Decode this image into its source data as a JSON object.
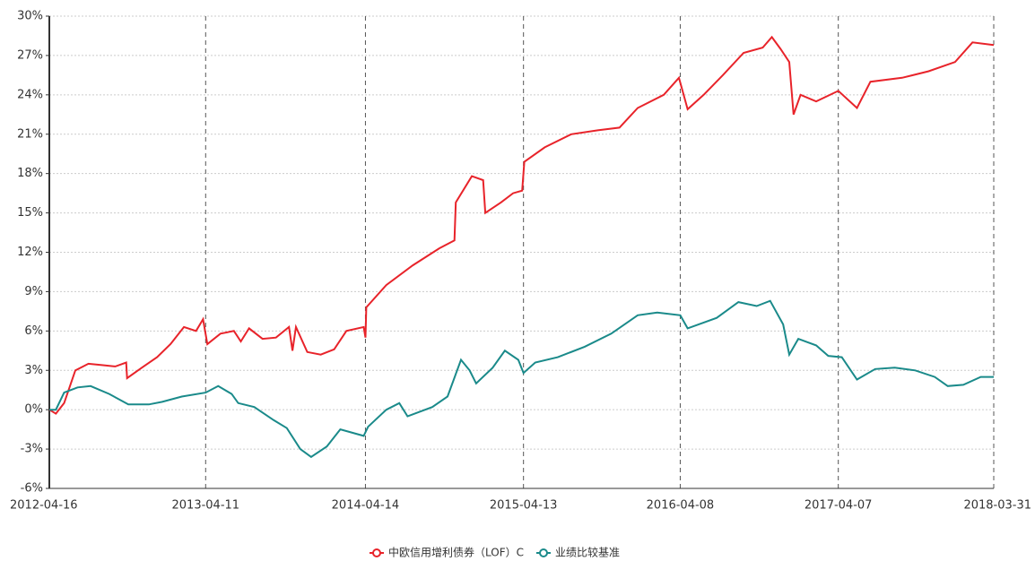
{
  "chart_data": {
    "type": "line",
    "xlim": [
      "2012-04-16",
      "2018-03-31"
    ],
    "xticks": [
      "2012-04-16",
      "2013-04-11",
      "2014-04-14",
      "2015-04-13",
      "2016-04-08",
      "2017-04-07",
      "2018-03-31"
    ],
    "ylim": [
      -6,
      30
    ],
    "yticks": [
      {
        "value": -6,
        "label": "-6%"
      },
      {
        "value": -3,
        "label": "-3%"
      },
      {
        "value": 0,
        "label": "0%"
      },
      {
        "value": 3,
        "label": "3%"
      },
      {
        "value": 6,
        "label": "6%"
      },
      {
        "value": 9,
        "label": "9%"
      },
      {
        "value": 12,
        "label": "12%"
      },
      {
        "value": 15,
        "label": "15%"
      },
      {
        "value": 18,
        "label": "18%"
      },
      {
        "value": 21,
        "label": "21%"
      },
      {
        "value": 24,
        "label": "24%"
      },
      {
        "value": 27,
        "label": "27%"
      },
      {
        "value": 30,
        "label": "30%"
      }
    ],
    "grid": true,
    "legend": "bottom",
    "series": [
      {
        "name": "中欧信用增利债券（LOF）C",
        "color": "#e8232a",
        "x": [
          "2012-04-16",
          "2012-05-01",
          "2012-05-20",
          "2012-06-15",
          "2012-07-15",
          "2012-08-15",
          "2012-09-15",
          "2012-10-10",
          "2012-10-12",
          "2012-11-15",
          "2012-12-20",
          "2013-01-20",
          "2013-02-20",
          "2013-03-20",
          "2013-04-05",
          "2013-04-15",
          "2013-05-15",
          "2013-06-15",
          "2013-07-01",
          "2013-07-20",
          "2013-08-20",
          "2013-09-20",
          "2013-10-20",
          "2013-10-28",
          "2013-11-05",
          "2013-12-01",
          "2014-01-01",
          "2014-02-01",
          "2014-03-01",
          "2014-04-10",
          "2014-04-14",
          "2014-04-16",
          "2014-06-01",
          "2014-08-01",
          "2014-10-01",
          "2014-11-05",
          "2014-11-08",
          "2014-12-15",
          "2015-01-10",
          "2015-01-15",
          "2015-02-20",
          "2015-03-20",
          "2015-04-10",
          "2015-04-15",
          "2015-06-01",
          "2015-08-01",
          "2015-10-01",
          "2015-11-20",
          "2016-01-01",
          "2016-03-01",
          "2016-04-05",
          "2016-04-25",
          "2016-06-01",
          "2016-07-15",
          "2016-09-01",
          "2016-10-15",
          "2016-11-05",
          "2016-11-25",
          "2016-12-15",
          "2016-12-25",
          "2017-01-10",
          "2017-02-15",
          "2017-04-07",
          "2017-05-20",
          "2017-06-20",
          "2017-09-01",
          "2017-11-01",
          "2018-01-01",
          "2018-02-10",
          "2018-03-31"
        ],
        "values": [
          0,
          -0.3,
          0.5,
          3.0,
          3.5,
          3.4,
          3.3,
          3.6,
          2.4,
          3.2,
          4.0,
          5.0,
          6.3,
          6.0,
          6.9,
          5.0,
          5.8,
          6.0,
          5.2,
          6.2,
          5.4,
          5.5,
          6.3,
          4.5,
          6.3,
          4.4,
          4.2,
          4.6,
          6.0,
          6.3,
          5.5,
          7.8,
          9.5,
          11.0,
          12.3,
          12.9,
          15.8,
          17.8,
          17.5,
          15.0,
          15.8,
          16.5,
          16.7,
          18.9,
          20.0,
          21.0,
          21.3,
          21.5,
          23.0,
          24.0,
          25.3,
          22.9,
          24.0,
          25.5,
          27.2,
          27.6,
          28.4,
          27.5,
          26.5,
          22.5,
          24.0,
          23.5,
          24.3,
          23.0,
          25.0,
          25.3,
          25.8,
          26.5,
          28.0,
          27.8
        ]
      },
      {
        "name": "业绩比较基准",
        "color": "#1a8a8a",
        "x": [
          "2012-04-16",
          "2012-05-01",
          "2012-05-20",
          "2012-06-20",
          "2012-07-20",
          "2012-09-01",
          "2012-10-15",
          "2012-12-01",
          "2013-01-01",
          "2013-02-15",
          "2013-04-11",
          "2013-05-10",
          "2013-06-10",
          "2013-06-25",
          "2013-08-01",
          "2013-09-15",
          "2013-10-15",
          "2013-11-15",
          "2013-12-10",
          "2014-01-15",
          "2014-02-15",
          "2014-04-10",
          "2014-04-20",
          "2014-06-01",
          "2014-07-01",
          "2014-07-20",
          "2014-09-15",
          "2014-10-20",
          "2014-11-20",
          "2014-12-10",
          "2014-12-25",
          "2015-02-01",
          "2015-03-01",
          "2015-04-01",
          "2015-04-13",
          "2015-05-10",
          "2015-07-01",
          "2015-09-01",
          "2015-11-01",
          "2016-01-01",
          "2016-02-15",
          "2016-04-08",
          "2016-04-25",
          "2016-07-01",
          "2016-08-20",
          "2016-10-01",
          "2016-11-01",
          "2016-12-01",
          "2016-12-15",
          "2017-01-05",
          "2017-02-15",
          "2017-03-15",
          "2017-04-15",
          "2017-05-20",
          "2017-07-01",
          "2017-08-15",
          "2017-10-01",
          "2017-11-15",
          "2017-12-15",
          "2018-01-20",
          "2018-03-01",
          "2018-03-31"
        ],
        "values": [
          0,
          0,
          1.3,
          1.7,
          1.8,
          1.2,
          0.4,
          0.4,
          0.6,
          1.0,
          1.3,
          1.8,
          1.2,
          0.5,
          0.2,
          -0.8,
          -1.4,
          -3.0,
          -3.6,
          -2.8,
          -1.5,
          -2.0,
          -1.3,
          0.0,
          0.5,
          -0.5,
          0.2,
          1.0,
          3.8,
          3.0,
          2.0,
          3.2,
          4.5,
          3.8,
          2.8,
          3.6,
          4.0,
          4.8,
          5.8,
          7.2,
          7.4,
          7.2,
          6.2,
          7.0,
          8.2,
          7.9,
          8.3,
          6.5,
          4.2,
          5.4,
          4.9,
          4.1,
          4.0,
          2.3,
          3.1,
          3.2,
          3.0,
          2.5,
          1.8,
          1.9,
          2.5,
          2.5
        ]
      }
    ]
  }
}
